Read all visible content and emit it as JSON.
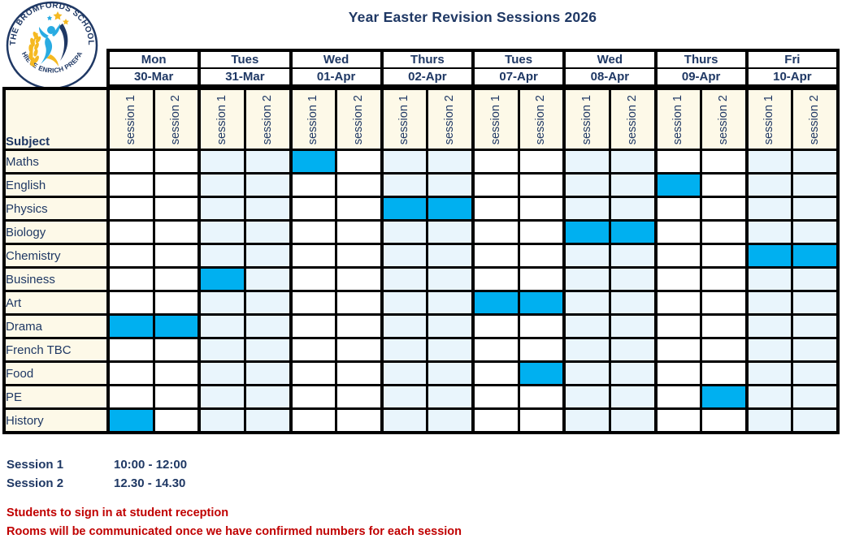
{
  "title": "Year Easter Revision Sessions 2026",
  "logo": {
    "school_name": "THE BROMFORDS SCHOOL",
    "motto": "ACHIEVE ENRICH PREPARE"
  },
  "colors": {
    "navy_text": "#1F3864",
    "highlight_blue": "#00B0F0",
    "shaded_column_blue": "#E9F5FC",
    "header_cream": "#FDF9E8",
    "note_red": "#C00000",
    "grid_border": "#000000",
    "logo_blue": "#29ABE2",
    "logo_gold": "#F5B921"
  },
  "table": {
    "subject_header": "Subject",
    "session_labels": [
      "session 1",
      "session 2"
    ],
    "days": [
      {
        "day": "Mon",
        "date": "30-Mar",
        "shaded": false
      },
      {
        "day": "Tues",
        "date": "31-Mar",
        "shaded": true
      },
      {
        "day": "Wed",
        "date": "01-Apr",
        "shaded": false
      },
      {
        "day": "Thurs",
        "date": "02-Apr",
        "shaded": true
      },
      {
        "day": "Tues",
        "date": "07-Apr",
        "shaded": false
      },
      {
        "day": "Wed",
        "date": "08-Apr",
        "shaded": true
      },
      {
        "day": "Thurs",
        "date": "09-Apr",
        "shaded": false
      },
      {
        "day": "Fri",
        "date": "10-Apr",
        "shaded": true
      }
    ],
    "subjects": [
      {
        "name": "Maths",
        "highlights": [
          [
            2,
            0
          ]
        ]
      },
      {
        "name": "English",
        "highlights": [
          [
            6,
            0
          ]
        ]
      },
      {
        "name": "Physics",
        "highlights": [
          [
            3,
            0
          ],
          [
            3,
            1
          ]
        ]
      },
      {
        "name": "Biology",
        "highlights": [
          [
            5,
            0
          ],
          [
            5,
            1
          ]
        ]
      },
      {
        "name": "Chemistry",
        "highlights": [
          [
            7,
            0
          ],
          [
            7,
            1
          ]
        ]
      },
      {
        "name": "Business",
        "highlights": [
          [
            1,
            0
          ]
        ]
      },
      {
        "name": "Art",
        "highlights": [
          [
            4,
            0
          ],
          [
            4,
            1
          ]
        ]
      },
      {
        "name": "Drama",
        "highlights": [
          [
            0,
            0
          ],
          [
            0,
            1
          ]
        ]
      },
      {
        "name": "French TBC",
        "highlights": []
      },
      {
        "name": "Food",
        "highlights": [
          [
            4,
            1
          ]
        ]
      },
      {
        "name": "PE",
        "highlights": [
          [
            6,
            1
          ]
        ]
      },
      {
        "name": "History",
        "highlights": [
          [
            0,
            0
          ]
        ]
      }
    ]
  },
  "legend": [
    {
      "label": "Session 1",
      "time": "10:00 - 12:00"
    },
    {
      "label": "Session 2",
      "time": "12.30 - 14.30"
    }
  ],
  "notes": [
    "Students to sign in at student reception",
    "Rooms will be communicated once we have confirmed numbers for each session"
  ]
}
